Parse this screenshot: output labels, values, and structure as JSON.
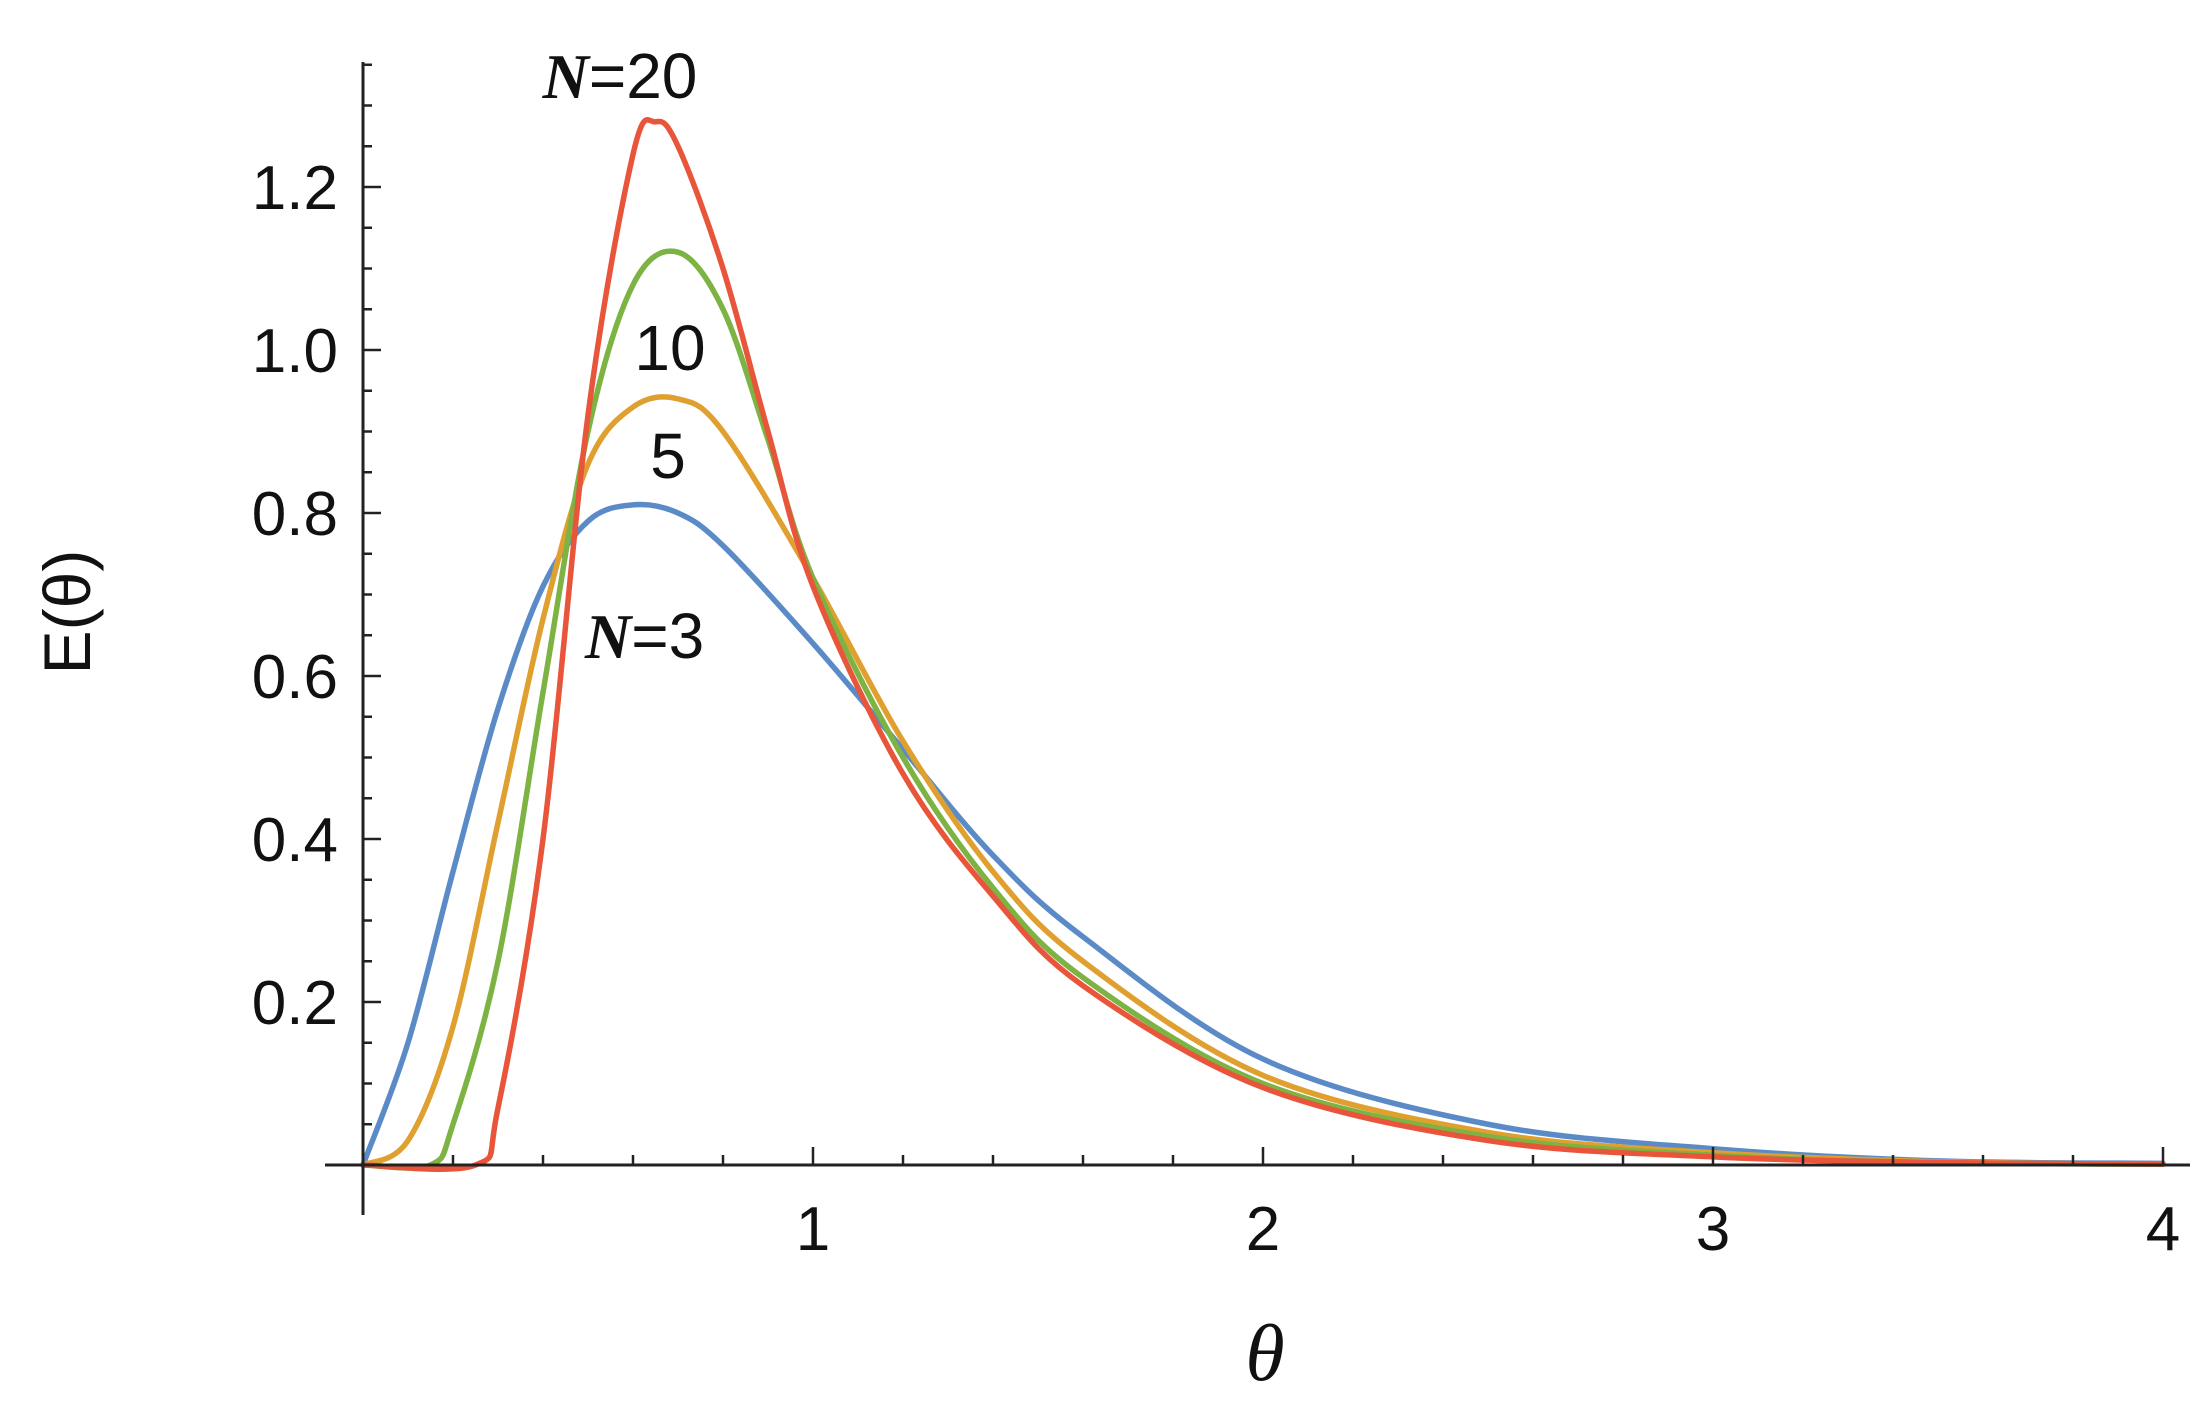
{
  "chart_data": {
    "type": "line",
    "xlabel": "θ",
    "ylabel": "E(θ)",
    "xlim": [
      0,
      4.08
    ],
    "ylim": [
      0,
      1.35
    ],
    "x_ticks": [
      {
        "value": 1,
        "label": "1"
      },
      {
        "value": 2,
        "label": "2"
      },
      {
        "value": 3,
        "label": "3"
      },
      {
        "value": 4,
        "label": "4"
      }
    ],
    "y_ticks": [
      {
        "value": 0.2,
        "label": "0.2"
      },
      {
        "value": 0.4,
        "label": "0.4"
      },
      {
        "value": 0.6,
        "label": "0.6"
      },
      {
        "value": 0.8,
        "label": "0.8"
      },
      {
        "value": 1.0,
        "label": "1.0"
      },
      {
        "value": 1.2,
        "label": "1.2"
      }
    ],
    "grid": false,
    "series": [
      {
        "name": "N = 3",
        "label_prefix": "N",
        "label_value": "3",
        "color": "#5b8bc7",
        "x": [
          0,
          0.1,
          0.2,
          0.3,
          0.4,
          0.5,
          0.6,
          0.7,
          0.8,
          1.0,
          1.2,
          1.4,
          1.6,
          2.0,
          2.5,
          3.0,
          3.5,
          4.0
        ],
        "y": [
          0,
          0.15,
          0.36,
          0.56,
          0.71,
          0.79,
          0.81,
          0.8,
          0.76,
          0.64,
          0.51,
          0.38,
          0.28,
          0.13,
          0.05,
          0.02,
          0.005,
          0.002
        ]
      },
      {
        "name": "5",
        "label_value": "5",
        "color": "#e0a030",
        "x": [
          0,
          0.1,
          0.2,
          0.3,
          0.4,
          0.5,
          0.6,
          0.7,
          0.8,
          1.0,
          1.2,
          1.4,
          1.6,
          2.0,
          2.5,
          3.0,
          3.5,
          4.0
        ],
        "y": [
          0,
          0.03,
          0.17,
          0.42,
          0.67,
          0.86,
          0.93,
          0.94,
          0.9,
          0.72,
          0.52,
          0.36,
          0.25,
          0.11,
          0.04,
          0.015,
          0.004,
          0.001
        ]
      },
      {
        "name": "10",
        "label_value": "10",
        "color": "#7cb342",
        "x": [
          0,
          0.15,
          0.2,
          0.3,
          0.4,
          0.5,
          0.6,
          0.7,
          0.8,
          0.9,
          1.0,
          1.2,
          1.4,
          1.6,
          2.0,
          2.5,
          3.0,
          3.5,
          4.0
        ],
        "y": [
          0,
          0.0,
          0.05,
          0.25,
          0.58,
          0.9,
          1.08,
          1.12,
          1.05,
          0.89,
          0.72,
          0.5,
          0.34,
          0.23,
          0.1,
          0.035,
          0.012,
          0.003,
          0.001
        ]
      },
      {
        "name": "N = 20",
        "label_prefix": "N",
        "label_value": "20",
        "color": "#e8553a",
        "x": [
          0,
          0.25,
          0.3,
          0.4,
          0.5,
          0.6,
          0.65,
          0.7,
          0.8,
          0.9,
          1.0,
          1.2,
          1.4,
          1.6,
          2.0,
          2.5,
          3.0,
          3.5,
          4.0
        ],
        "y": [
          0,
          0.0,
          0.07,
          0.4,
          0.92,
          1.24,
          1.28,
          1.25,
          1.1,
          0.9,
          0.71,
          0.48,
          0.33,
          0.22,
          0.095,
          0.03,
          0.01,
          0.003,
          0.001
        ]
      }
    ]
  }
}
